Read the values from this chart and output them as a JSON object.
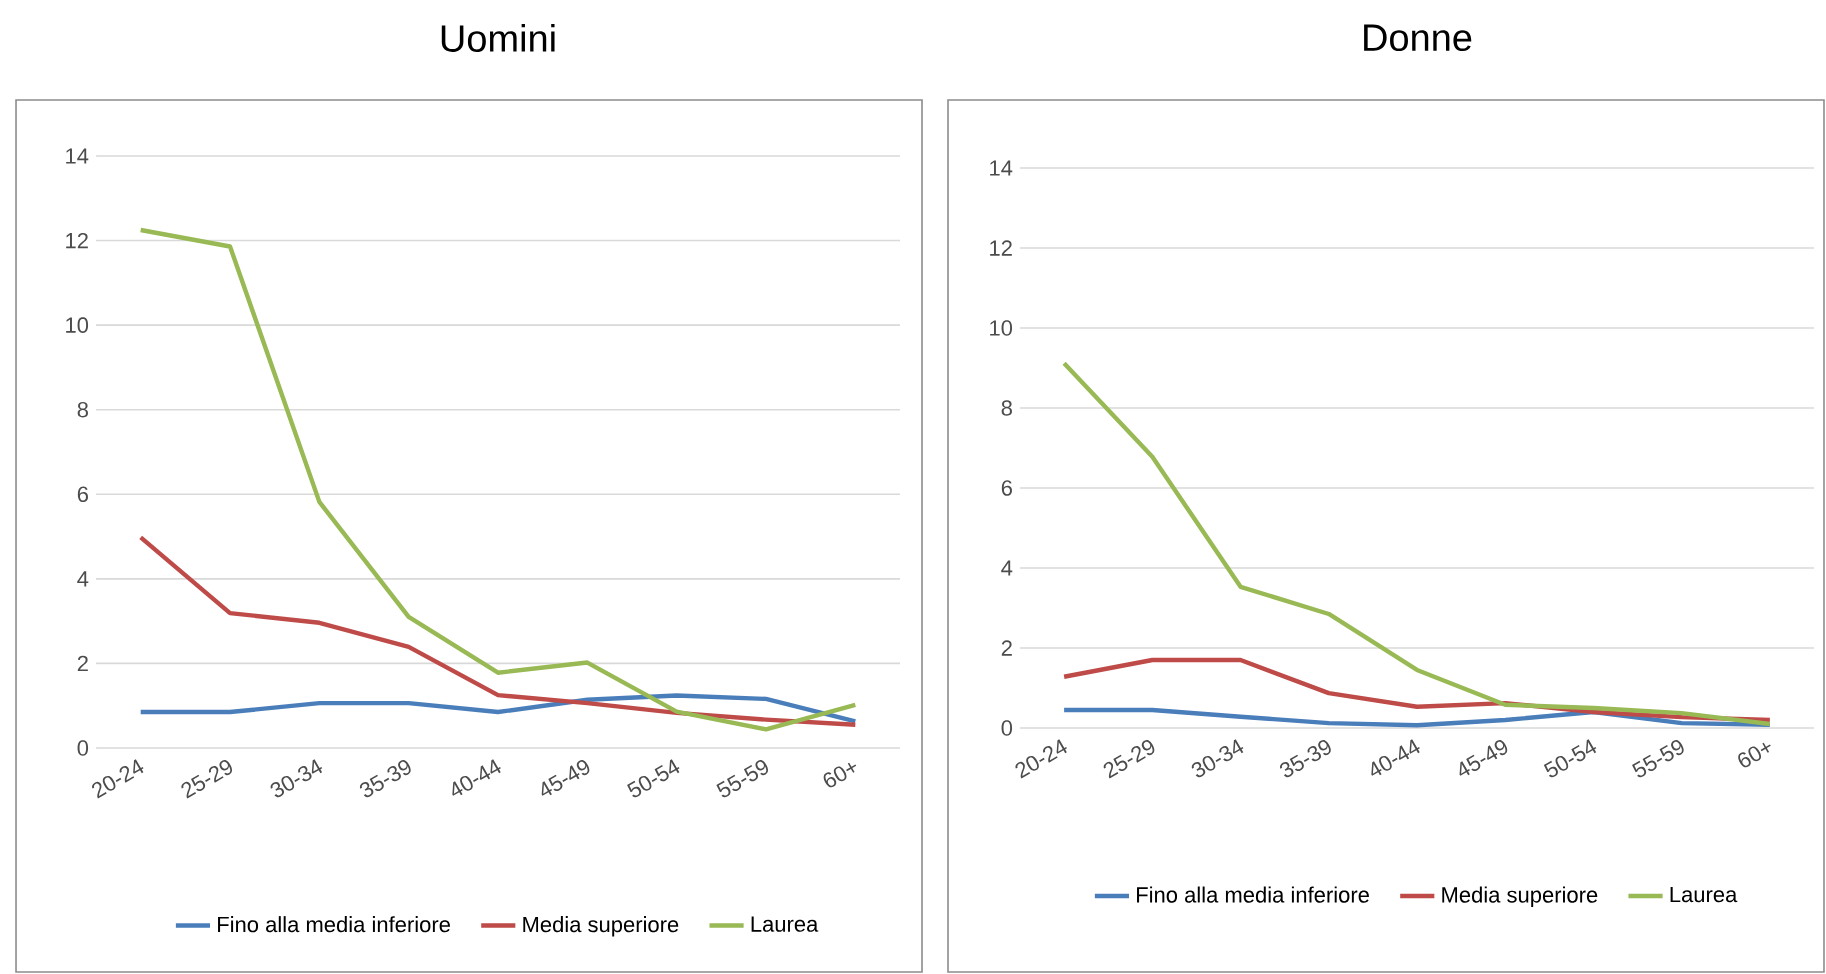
{
  "chart_data": [
    {
      "type": "line",
      "title": "Uomini",
      "categories": [
        "20-24",
        "25-29",
        "30-34",
        "35-39",
        "40-44",
        "45-49",
        "50-54",
        "55-59",
        "60+"
      ],
      "series": [
        {
          "name": "Fino alla media inferiore",
          "color": "#4a7ebb",
          "values": [
            0.85,
            0.85,
            1.06,
            1.06,
            0.85,
            1.14,
            1.24,
            1.16,
            0.63
          ]
        },
        {
          "name": "Media superiore",
          "color": "#be4b48",
          "values": [
            4.98,
            3.19,
            2.96,
            2.39,
            1.25,
            1.06,
            0.83,
            0.67,
            0.55
          ]
        },
        {
          "name": "Laurea",
          "color": "#98b954",
          "values": [
            12.25,
            11.86,
            5.82,
            3.1,
            1.78,
            2.02,
            0.86,
            0.44,
            1.02
          ]
        }
      ],
      "ylim": [
        0,
        14
      ],
      "yticks": [
        0,
        2,
        4,
        6,
        8,
        10,
        12,
        14
      ],
      "grid": "y",
      "legend": "bottom"
    },
    {
      "type": "line",
      "title": "Donne",
      "categories": [
        "20-24",
        "25-29",
        "30-34",
        "35-39",
        "40-44",
        "45-49",
        "50-54",
        "55-59",
        "60+"
      ],
      "series": [
        {
          "name": "Fino alla media inferiore",
          "color": "#4a7ebb",
          "values": [
            0.45,
            0.45,
            0.28,
            0.12,
            0.07,
            0.2,
            0.4,
            0.12,
            0.08
          ]
        },
        {
          "name": "Media superiore",
          "color": "#be4b48",
          "values": [
            1.28,
            1.7,
            1.7,
            0.87,
            0.53,
            0.62,
            0.4,
            0.27,
            0.2
          ]
        },
        {
          "name": "Laurea",
          "color": "#98b954",
          "values": [
            9.12,
            6.78,
            3.53,
            2.85,
            1.45,
            0.58,
            0.5,
            0.37,
            0.1
          ]
        }
      ],
      "ylim": [
        0,
        14
      ],
      "yticks": [
        0,
        2,
        4,
        6,
        8,
        10,
        12,
        14
      ],
      "grid": "y",
      "legend": "bottom"
    }
  ]
}
